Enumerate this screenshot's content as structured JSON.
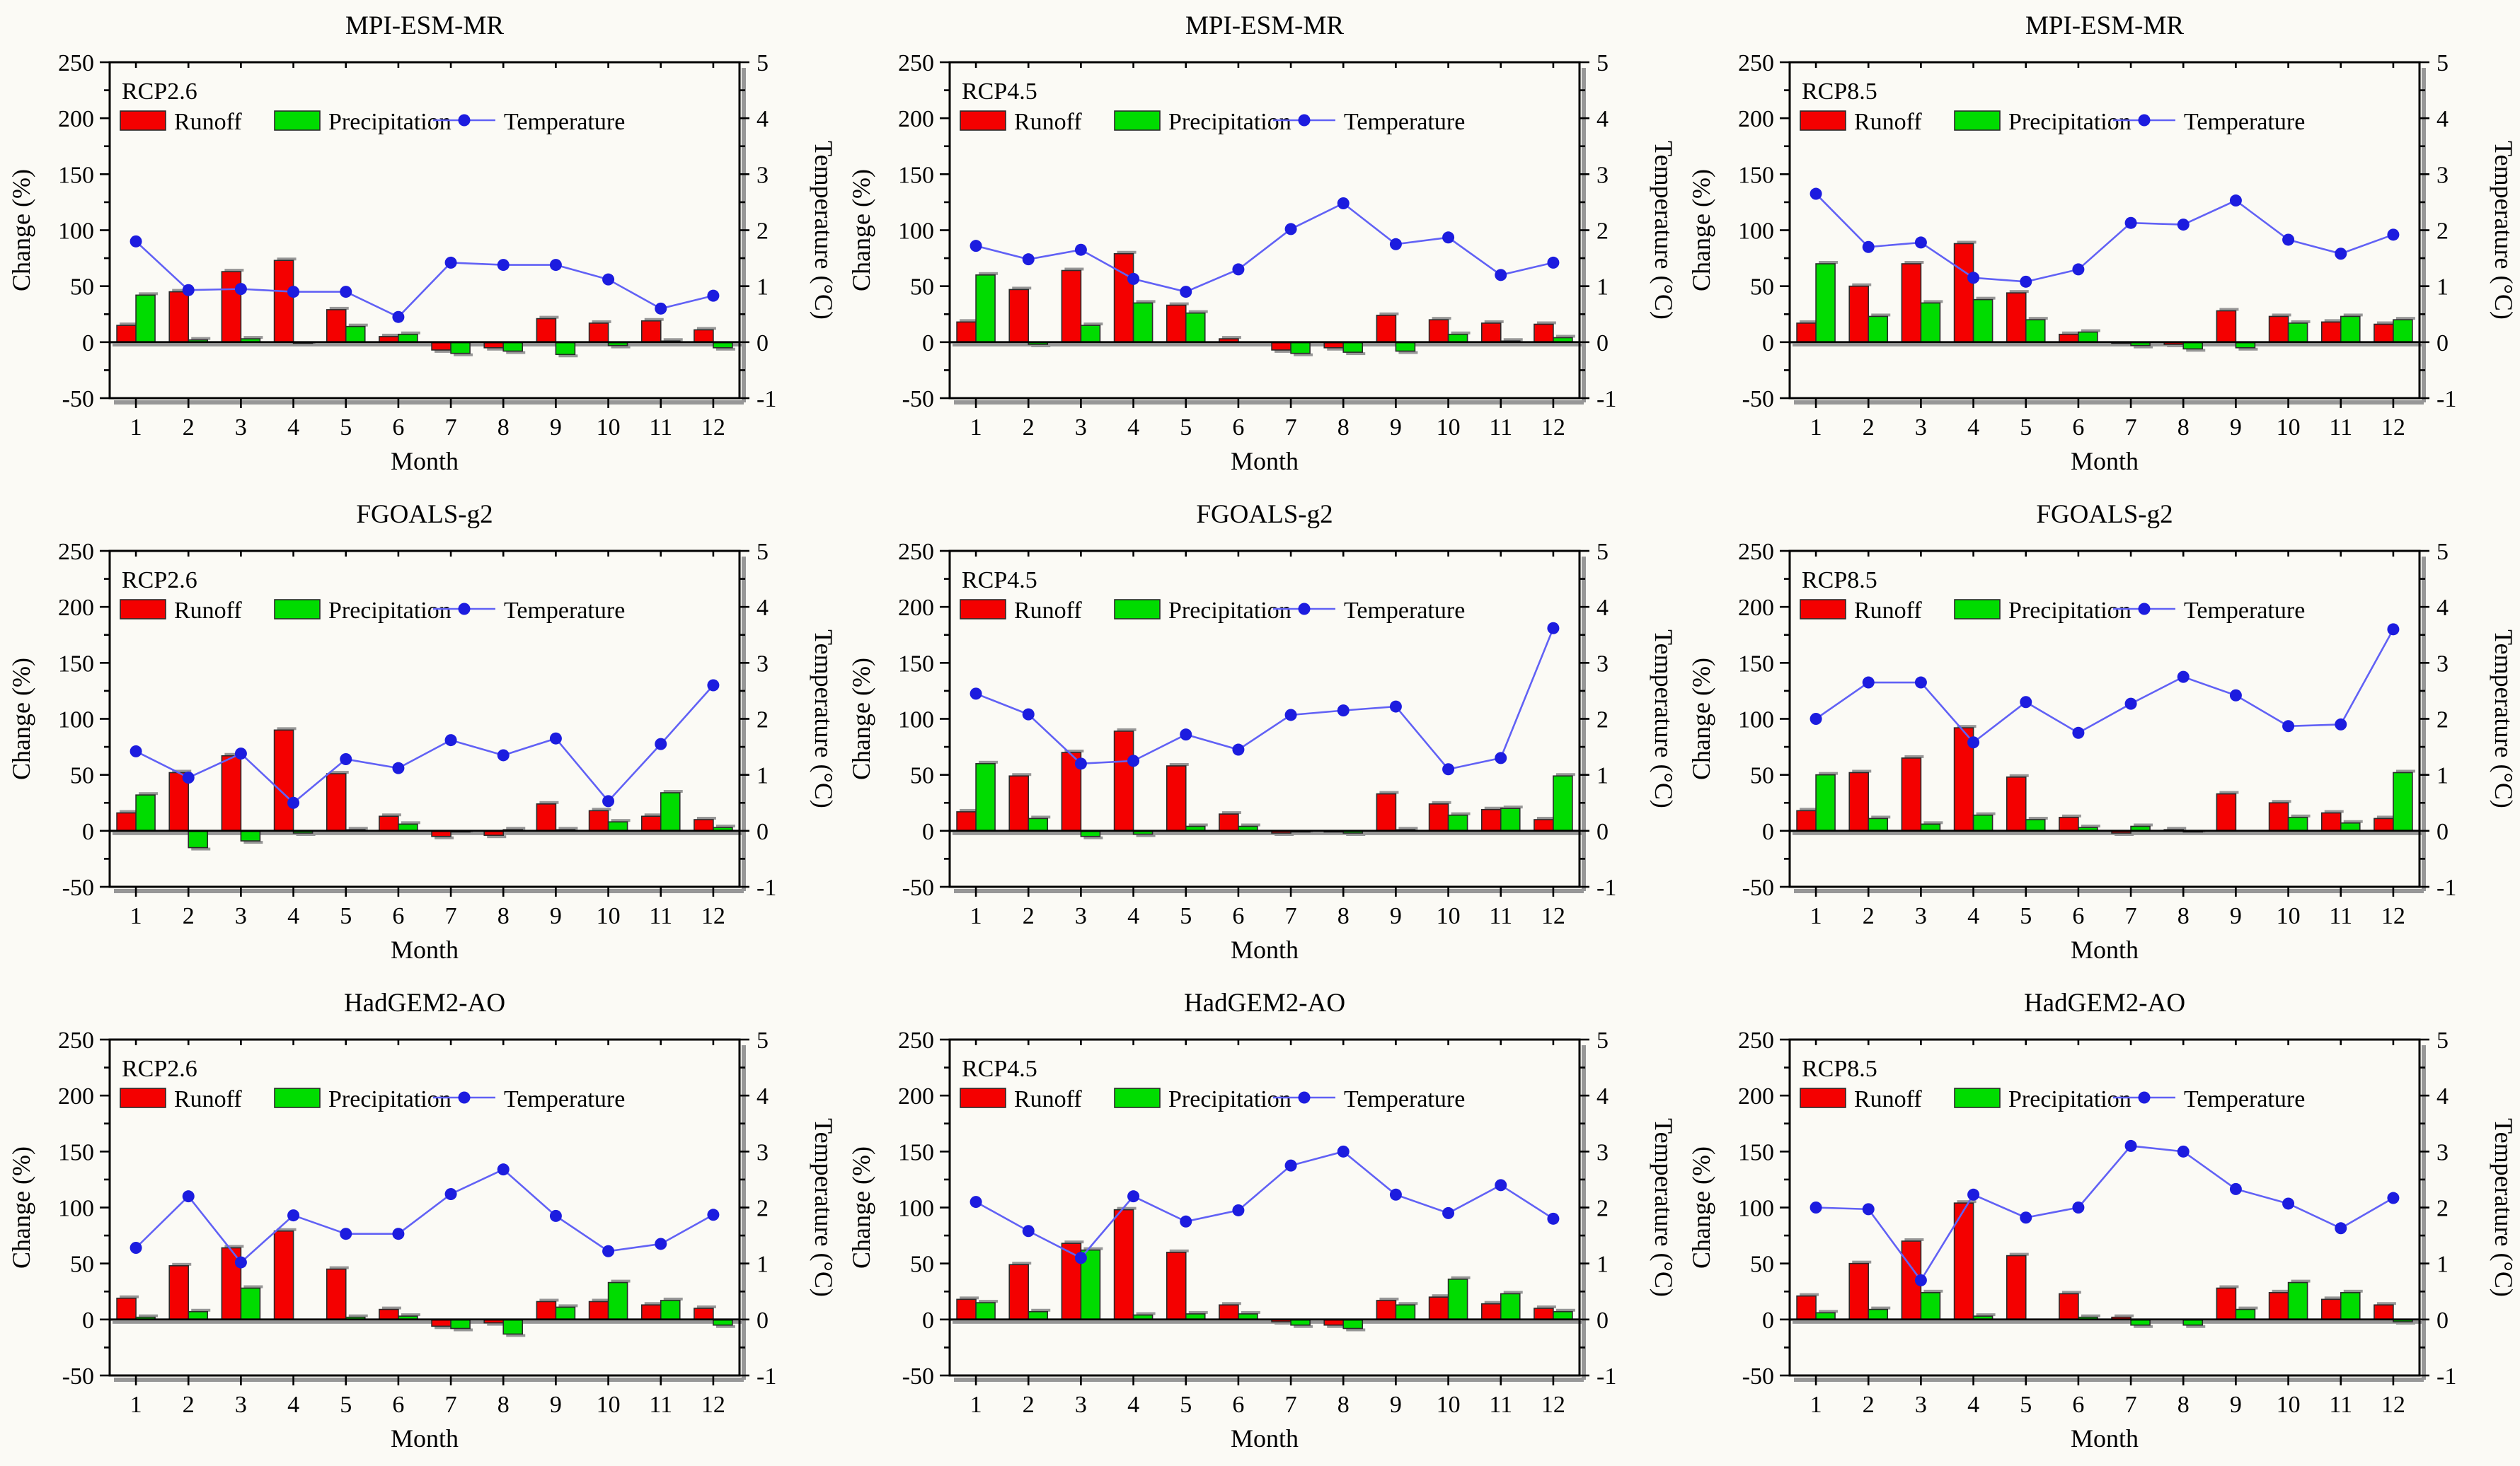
{
  "figure": {
    "xlabel": "Month",
    "ylabel_left": "Change (%)",
    "ylabel_right": "Temperature (°C)",
    "legend": {
      "runoff_label": "Runoff",
      "precipitation_label": "Precipitation",
      "temperature_label": "Temperature"
    },
    "month_ticks": [
      "1",
      "2",
      "3",
      "4",
      "5",
      "6",
      "7",
      "8",
      "9",
      "10",
      "11",
      "12"
    ],
    "left_axis_ticks": [
      250,
      200,
      150,
      100,
      50,
      0,
      -50
    ],
    "right_axis_ticks": [
      5,
      4,
      3,
      2,
      1,
      0,
      -1
    ],
    "left_axis_range": [
      -50,
      250
    ],
    "right_axis_range": [
      -1,
      5
    ],
    "grid": "off",
    "legend_position": "top-inside"
  },
  "colors": {
    "runoff": "#f40000",
    "precipitation": "#00dc00",
    "temp_line": "#6161f5",
    "temp_marker": "#1c1cdf",
    "frame": "#000000",
    "bar_outline": "#2a2a2a",
    "shadow": "#979797",
    "background": "#fbfaf5"
  },
  "chart_data": [
    {
      "type": "bar",
      "title": "MPI-ESM-MR",
      "scenario": "RCP2.6",
      "categories": [
        1,
        2,
        3,
        4,
        5,
        6,
        7,
        8,
        9,
        10,
        11,
        12
      ],
      "xlabel": "Month",
      "ylabel": "Change (%)",
      "y2label": "Temperature (°C)",
      "ylim": [
        -50,
        250
      ],
      "y2lim": [
        -1,
        5
      ],
      "series": [
        {
          "name": "Runoff",
          "type": "bar",
          "axis": "left",
          "values": [
            15,
            45,
            63,
            73,
            29,
            5,
            -7,
            -5,
            21,
            17,
            19,
            11
          ]
        },
        {
          "name": "Precipitation",
          "type": "bar",
          "axis": "left",
          "values": [
            42,
            2,
            3,
            -1,
            14,
            7,
            -10,
            -8,
            -11,
            -3,
            1,
            -5
          ]
        },
        {
          "name": "Temperature",
          "type": "line",
          "axis": "right",
          "values": [
            1.8,
            0.93,
            0.95,
            0.9,
            0.9,
            0.45,
            1.42,
            1.38,
            1.38,
            1.12,
            0.6,
            0.83
          ]
        }
      ]
    },
    {
      "type": "bar",
      "title": "MPI-ESM-MR",
      "scenario": "RCP4.5",
      "categories": [
        1,
        2,
        3,
        4,
        5,
        6,
        7,
        8,
        9,
        10,
        11,
        12
      ],
      "xlabel": "Month",
      "ylabel": "Change (%)",
      "y2label": "Temperature (°C)",
      "ylim": [
        -50,
        250
      ],
      "y2lim": [
        -1,
        5
      ],
      "series": [
        {
          "name": "Runoff",
          "type": "bar",
          "axis": "left",
          "values": [
            18,
            47,
            64,
            79,
            33,
            3,
            -7,
            -5,
            24,
            20,
            17,
            16
          ]
        },
        {
          "name": "Precipitation",
          "type": "bar",
          "axis": "left",
          "values": [
            60,
            -2,
            15,
            35,
            26,
            0,
            -10,
            -9,
            -8,
            7,
            1,
            4
          ]
        },
        {
          "name": "Temperature",
          "type": "line",
          "axis": "right",
          "values": [
            1.72,
            1.48,
            1.65,
            1.13,
            0.9,
            1.3,
            2.02,
            2.48,
            1.75,
            1.87,
            1.2,
            1.42
          ]
        }
      ]
    },
    {
      "type": "bar",
      "title": "MPI-ESM-MR",
      "scenario": "RCP8.5",
      "categories": [
        1,
        2,
        3,
        4,
        5,
        6,
        7,
        8,
        9,
        10,
        11,
        12
      ],
      "xlabel": "Month",
      "ylabel": "Change (%)",
      "y2label": "Temperature (°C)",
      "ylim": [
        -50,
        250
      ],
      "y2lim": [
        -1,
        5
      ],
      "series": [
        {
          "name": "Runoff",
          "type": "bar",
          "axis": "left",
          "values": [
            17,
            50,
            70,
            88,
            44,
            7,
            -1,
            -2,
            28,
            23,
            18,
            16
          ]
        },
        {
          "name": "Precipitation",
          "type": "bar",
          "axis": "left",
          "values": [
            70,
            23,
            35,
            38,
            20,
            9,
            -3,
            -6,
            -5,
            17,
            23,
            20
          ]
        },
        {
          "name": "Temperature",
          "type": "line",
          "axis": "right",
          "values": [
            2.65,
            1.7,
            1.78,
            1.15,
            1.08,
            1.3,
            2.13,
            2.1,
            2.53,
            1.83,
            1.58,
            1.92
          ]
        }
      ]
    },
    {
      "type": "bar",
      "title": "FGOALS-g2",
      "scenario": "RCP2.6",
      "categories": [
        1,
        2,
        3,
        4,
        5,
        6,
        7,
        8,
        9,
        10,
        11,
        12
      ],
      "xlabel": "Month",
      "ylabel": "Change (%)",
      "y2label": "Temperature (°C)",
      "ylim": [
        -50,
        250
      ],
      "y2lim": [
        -1,
        5
      ],
      "series": [
        {
          "name": "Runoff",
          "type": "bar",
          "axis": "left",
          "values": [
            16,
            52,
            67,
            90,
            51,
            13,
            -5,
            -4,
            24,
            18,
            13,
            10
          ]
        },
        {
          "name": "Precipitation",
          "type": "bar",
          "axis": "left",
          "values": [
            32,
            -15,
            -9,
            -2,
            1,
            6,
            -1,
            1,
            1,
            8,
            34,
            3
          ]
        },
        {
          "name": "Temperature",
          "type": "line",
          "axis": "right",
          "values": [
            1.42,
            0.95,
            1.38,
            0.5,
            1.28,
            1.12,
            1.62,
            1.35,
            1.65,
            0.53,
            1.55,
            2.6
          ]
        }
      ]
    },
    {
      "type": "bar",
      "title": "FGOALS-g2",
      "scenario": "RCP4.5",
      "categories": [
        1,
        2,
        3,
        4,
        5,
        6,
        7,
        8,
        9,
        10,
        11,
        12
      ],
      "xlabel": "Month",
      "ylabel": "Change (%)",
      "y2label": "Temperature (°C)",
      "ylim": [
        -50,
        250
      ],
      "y2lim": [
        -1,
        5
      ],
      "series": [
        {
          "name": "Runoff",
          "type": "bar",
          "axis": "left",
          "values": [
            17,
            49,
            70,
            89,
            58,
            15,
            -2,
            -1,
            33,
            24,
            19,
            10
          ]
        },
        {
          "name": "Precipitation",
          "type": "bar",
          "axis": "left",
          "values": [
            60,
            11,
            -5,
            -3,
            4,
            4,
            -1,
            -2,
            1,
            14,
            20,
            49
          ]
        },
        {
          "name": "Temperature",
          "type": "line",
          "axis": "right",
          "values": [
            2.45,
            2.08,
            1.2,
            1.25,
            1.72,
            1.45,
            2.07,
            2.15,
            2.22,
            1.1,
            1.3,
            3.62
          ]
        }
      ]
    },
    {
      "type": "bar",
      "title": "FGOALS-g2",
      "scenario": "RCP8.5",
      "categories": [
        1,
        2,
        3,
        4,
        5,
        6,
        7,
        8,
        9,
        10,
        11,
        12
      ],
      "xlabel": "Month",
      "ylabel": "Change (%)",
      "y2label": "Temperature (°C)",
      "ylim": [
        -50,
        250
      ],
      "y2lim": [
        -1,
        5
      ],
      "series": [
        {
          "name": "Runoff",
          "type": "bar",
          "axis": "left",
          "values": [
            18,
            52,
            65,
            92,
            48,
            12,
            -2,
            1,
            33,
            25,
            16,
            11
          ]
        },
        {
          "name": "Precipitation",
          "type": "bar",
          "axis": "left",
          "values": [
            50,
            11,
            6,
            14,
            10,
            3,
            4,
            -1,
            0,
            12,
            7,
            52
          ]
        },
        {
          "name": "Temperature",
          "type": "line",
          "axis": "right",
          "values": [
            2.0,
            2.65,
            2.65,
            1.58,
            2.3,
            1.75,
            2.27,
            2.75,
            2.42,
            1.87,
            1.9,
            3.6
          ]
        }
      ]
    },
    {
      "type": "bar",
      "title": "HadGEM2-AO",
      "scenario": "RCP2.6",
      "categories": [
        1,
        2,
        3,
        4,
        5,
        6,
        7,
        8,
        9,
        10,
        11,
        12
      ],
      "xlabel": "Month",
      "ylabel": "Change (%)",
      "y2label": "Temperature (°C)",
      "ylim": [
        -50,
        250
      ],
      "y2lim": [
        -1,
        5
      ],
      "series": [
        {
          "name": "Runoff",
          "type": "bar",
          "axis": "left",
          "values": [
            19,
            48,
            64,
            79,
            45,
            9,
            -6,
            -3,
            16,
            16,
            13,
            10
          ]
        },
        {
          "name": "Precipitation",
          "type": "bar",
          "axis": "left",
          "values": [
            2,
            7,
            28,
            0,
            2,
            3,
            -8,
            -13,
            11,
            33,
            17,
            -5
          ]
        },
        {
          "name": "Temperature",
          "type": "line",
          "axis": "right",
          "values": [
            1.28,
            2.2,
            1.02,
            1.86,
            1.53,
            1.53,
            2.24,
            2.68,
            1.85,
            1.22,
            1.35,
            1.87
          ]
        }
      ]
    },
    {
      "type": "bar",
      "title": "HadGEM2-AO",
      "scenario": "RCP4.5",
      "categories": [
        1,
        2,
        3,
        4,
        5,
        6,
        7,
        8,
        9,
        10,
        11,
        12
      ],
      "xlabel": "Month",
      "ylabel": "Change (%)",
      "y2label": "Temperature (°C)",
      "ylim": [
        -50,
        250
      ],
      "y2lim": [
        -1,
        5
      ],
      "series": [
        {
          "name": "Runoff",
          "type": "bar",
          "axis": "left",
          "values": [
            18,
            49,
            68,
            98,
            60,
            13,
            -2,
            -5,
            17,
            20,
            14,
            10
          ]
        },
        {
          "name": "Precipitation",
          "type": "bar",
          "axis": "left",
          "values": [
            15,
            7,
            62,
            4,
            5,
            5,
            -5,
            -8,
            13,
            36,
            23,
            7
          ]
        },
        {
          "name": "Temperature",
          "type": "line",
          "axis": "right",
          "values": [
            2.1,
            1.58,
            1.1,
            2.2,
            1.75,
            1.95,
            2.75,
            3.0,
            2.23,
            1.9,
            2.4,
            1.8
          ]
        }
      ]
    },
    {
      "type": "bar",
      "title": "HadGEM2-AO",
      "scenario": "RCP8.5",
      "categories": [
        1,
        2,
        3,
        4,
        5,
        6,
        7,
        8,
        9,
        10,
        11,
        12
      ],
      "xlabel": "Month",
      "ylabel": "Change (%)",
      "y2label": "Temperature (°C)",
      "ylim": [
        -50,
        250
      ],
      "y2lim": [
        -1,
        5
      ],
      "series": [
        {
          "name": "Runoff",
          "type": "bar",
          "axis": "left",
          "values": [
            21,
            50,
            70,
            104,
            57,
            23,
            2,
            0,
            28,
            24,
            18,
            13
          ]
        },
        {
          "name": "Precipitation",
          "type": "bar",
          "axis": "left",
          "values": [
            6,
            9,
            24,
            3,
            0,
            2,
            -5,
            -5,
            9,
            33,
            24,
            -2
          ]
        },
        {
          "name": "Temperature",
          "type": "line",
          "axis": "right",
          "values": [
            2.0,
            1.97,
            0.7,
            2.23,
            1.82,
            2.0,
            3.1,
            3.0,
            2.33,
            2.07,
            1.63,
            2.17
          ]
        }
      ]
    }
  ]
}
